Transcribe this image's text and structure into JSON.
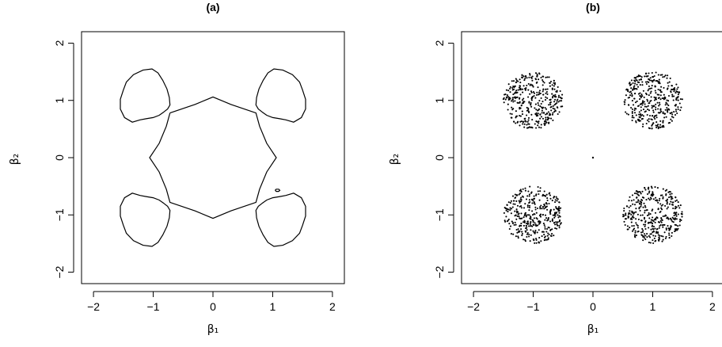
{
  "chart_data": [
    {
      "type": "line",
      "title": "(a)",
      "xlabel": "β₁",
      "ylabel": "β₂",
      "xlim": [
        -2.2,
        2.2
      ],
      "ylim": [
        -2.2,
        2.2
      ],
      "xticks": [
        "−2",
        "−1",
        "0",
        "1",
        "2"
      ],
      "yticks": [
        "−2",
        "−1",
        "0",
        "1",
        "2"
      ],
      "grid": false,
      "series": [
        {
          "role": "outer-contour-upper-left",
          "points": [
            [
              -0.82,
              0.8
            ],
            [
              -0.9,
              0.74
            ],
            [
              -1.0,
              0.7
            ],
            [
              -1.12,
              0.68
            ],
            [
              -1.22,
              0.66
            ],
            [
              -1.35,
              0.62
            ],
            [
              -1.48,
              0.7
            ],
            [
              -1.55,
              0.85
            ],
            [
              -1.55,
              1.02
            ],
            [
              -1.5,
              1.18
            ],
            [
              -1.45,
              1.32
            ],
            [
              -1.33,
              1.45
            ],
            [
              -1.17,
              1.53
            ],
            [
              -1.02,
              1.55
            ],
            [
              -0.92,
              1.48
            ],
            [
              -0.84,
              1.35
            ],
            [
              -0.77,
              1.2
            ],
            [
              -0.73,
              1.05
            ],
            [
              -0.72,
              0.92
            ],
            [
              -0.76,
              0.85
            ],
            [
              -0.82,
              0.8
            ]
          ]
        },
        {
          "role": "outer-contour-upper-right",
          "points": [
            [
              0.82,
              0.8
            ],
            [
              0.9,
              0.74
            ],
            [
              1.0,
              0.7
            ],
            [
              1.12,
              0.68
            ],
            [
              1.22,
              0.66
            ],
            [
              1.35,
              0.62
            ],
            [
              1.48,
              0.7
            ],
            [
              1.55,
              0.85
            ],
            [
              1.55,
              1.02
            ],
            [
              1.5,
              1.18
            ],
            [
              1.45,
              1.32
            ],
            [
              1.33,
              1.45
            ],
            [
              1.17,
              1.53
            ],
            [
              1.02,
              1.55
            ],
            [
              0.92,
              1.48
            ],
            [
              0.84,
              1.35
            ],
            [
              0.77,
              1.2
            ],
            [
              0.73,
              1.05
            ],
            [
              0.72,
              0.92
            ],
            [
              0.76,
              0.85
            ],
            [
              0.82,
              0.8
            ]
          ]
        },
        {
          "role": "outer-contour-lower-left",
          "points": [
            [
              -0.82,
              -0.8
            ],
            [
              -0.9,
              -0.74
            ],
            [
              -1.0,
              -0.7
            ],
            [
              -1.12,
              -0.68
            ],
            [
              -1.22,
              -0.66
            ],
            [
              -1.35,
              -0.62
            ],
            [
              -1.48,
              -0.7
            ],
            [
              -1.55,
              -0.85
            ],
            [
              -1.55,
              -1.02
            ],
            [
              -1.5,
              -1.18
            ],
            [
              -1.45,
              -1.32
            ],
            [
              -1.33,
              -1.45
            ],
            [
              -1.17,
              -1.53
            ],
            [
              -1.02,
              -1.55
            ],
            [
              -0.92,
              -1.48
            ],
            [
              -0.84,
              -1.35
            ],
            [
              -0.77,
              -1.2
            ],
            [
              -0.73,
              -1.05
            ],
            [
              -0.72,
              -0.92
            ],
            [
              -0.76,
              -0.85
            ],
            [
              -0.82,
              -0.8
            ]
          ]
        },
        {
          "role": "outer-contour-lower-right",
          "points": [
            [
              0.82,
              -0.8
            ],
            [
              0.9,
              -0.74
            ],
            [
              1.0,
              -0.7
            ],
            [
              1.12,
              -0.68
            ],
            [
              1.22,
              -0.66
            ],
            [
              1.35,
              -0.62
            ],
            [
              1.48,
              -0.7
            ],
            [
              1.55,
              -0.85
            ],
            [
              1.55,
              -1.02
            ],
            [
              1.5,
              -1.18
            ],
            [
              1.45,
              -1.32
            ],
            [
              1.33,
              -1.45
            ],
            [
              1.17,
              -1.53
            ],
            [
              1.02,
              -1.55
            ],
            [
              0.92,
              -1.48
            ],
            [
              0.84,
              -1.35
            ],
            [
              0.77,
              -1.2
            ],
            [
              0.73,
              -1.05
            ],
            [
              0.72,
              -0.92
            ],
            [
              0.76,
              -0.85
            ],
            [
              0.82,
              -0.8
            ]
          ]
        },
        {
          "role": "inner-contour",
          "points": [
            [
              -0.72,
              0.78
            ],
            [
              -0.3,
              0.93
            ],
            [
              0.0,
              1.06
            ],
            [
              0.3,
              0.93
            ],
            [
              0.72,
              0.78
            ],
            [
              0.78,
              0.55
            ],
            [
              0.9,
              0.25
            ],
            [
              1.06,
              0.0
            ],
            [
              0.9,
              -0.25
            ],
            [
              0.78,
              -0.55
            ],
            [
              0.72,
              -0.78
            ],
            [
              0.3,
              -0.93
            ],
            [
              0.0,
              -1.06
            ],
            [
              -0.3,
              -0.93
            ],
            [
              -0.72,
              -0.78
            ],
            [
              -0.78,
              -0.55
            ],
            [
              -0.9,
              -0.25
            ],
            [
              -1.06,
              0.0
            ],
            [
              -0.9,
              0.25
            ],
            [
              -0.78,
              0.55
            ],
            [
              -0.72,
              0.78
            ]
          ]
        },
        {
          "role": "small-loop",
          "points": [
            [
              1.04,
              -0.57
            ],
            [
              1.06,
              -0.55
            ],
            [
              1.1,
              -0.55
            ],
            [
              1.12,
              -0.57
            ],
            [
              1.1,
              -0.59
            ],
            [
              1.06,
              -0.59
            ],
            [
              1.04,
              -0.57
            ]
          ]
        }
      ]
    },
    {
      "type": "scatter",
      "title": "(b)",
      "xlabel": "β₁",
      "ylabel": "β₂",
      "xlim": [
        -2.2,
        2.2
      ],
      "ylim": [
        -2.2,
        2.2
      ],
      "xticks": [
        "−2",
        "−1",
        "0",
        "1",
        "2"
      ],
      "yticks": [
        "−2",
        "−1",
        "0",
        "1",
        "2"
      ],
      "grid": false,
      "clusters": [
        {
          "center": [
            -1.0,
            1.0
          ],
          "radius": 0.5,
          "count": 380
        },
        {
          "center": [
            1.0,
            1.0
          ],
          "radius": 0.5,
          "count": 380
        },
        {
          "center": [
            -1.0,
            -1.0
          ],
          "radius": 0.5,
          "count": 380
        },
        {
          "center": [
            1.0,
            -1.0
          ],
          "radius": 0.5,
          "count": 380
        }
      ],
      "points": [
        [
          0.0,
          0.0
        ]
      ]
    }
  ]
}
